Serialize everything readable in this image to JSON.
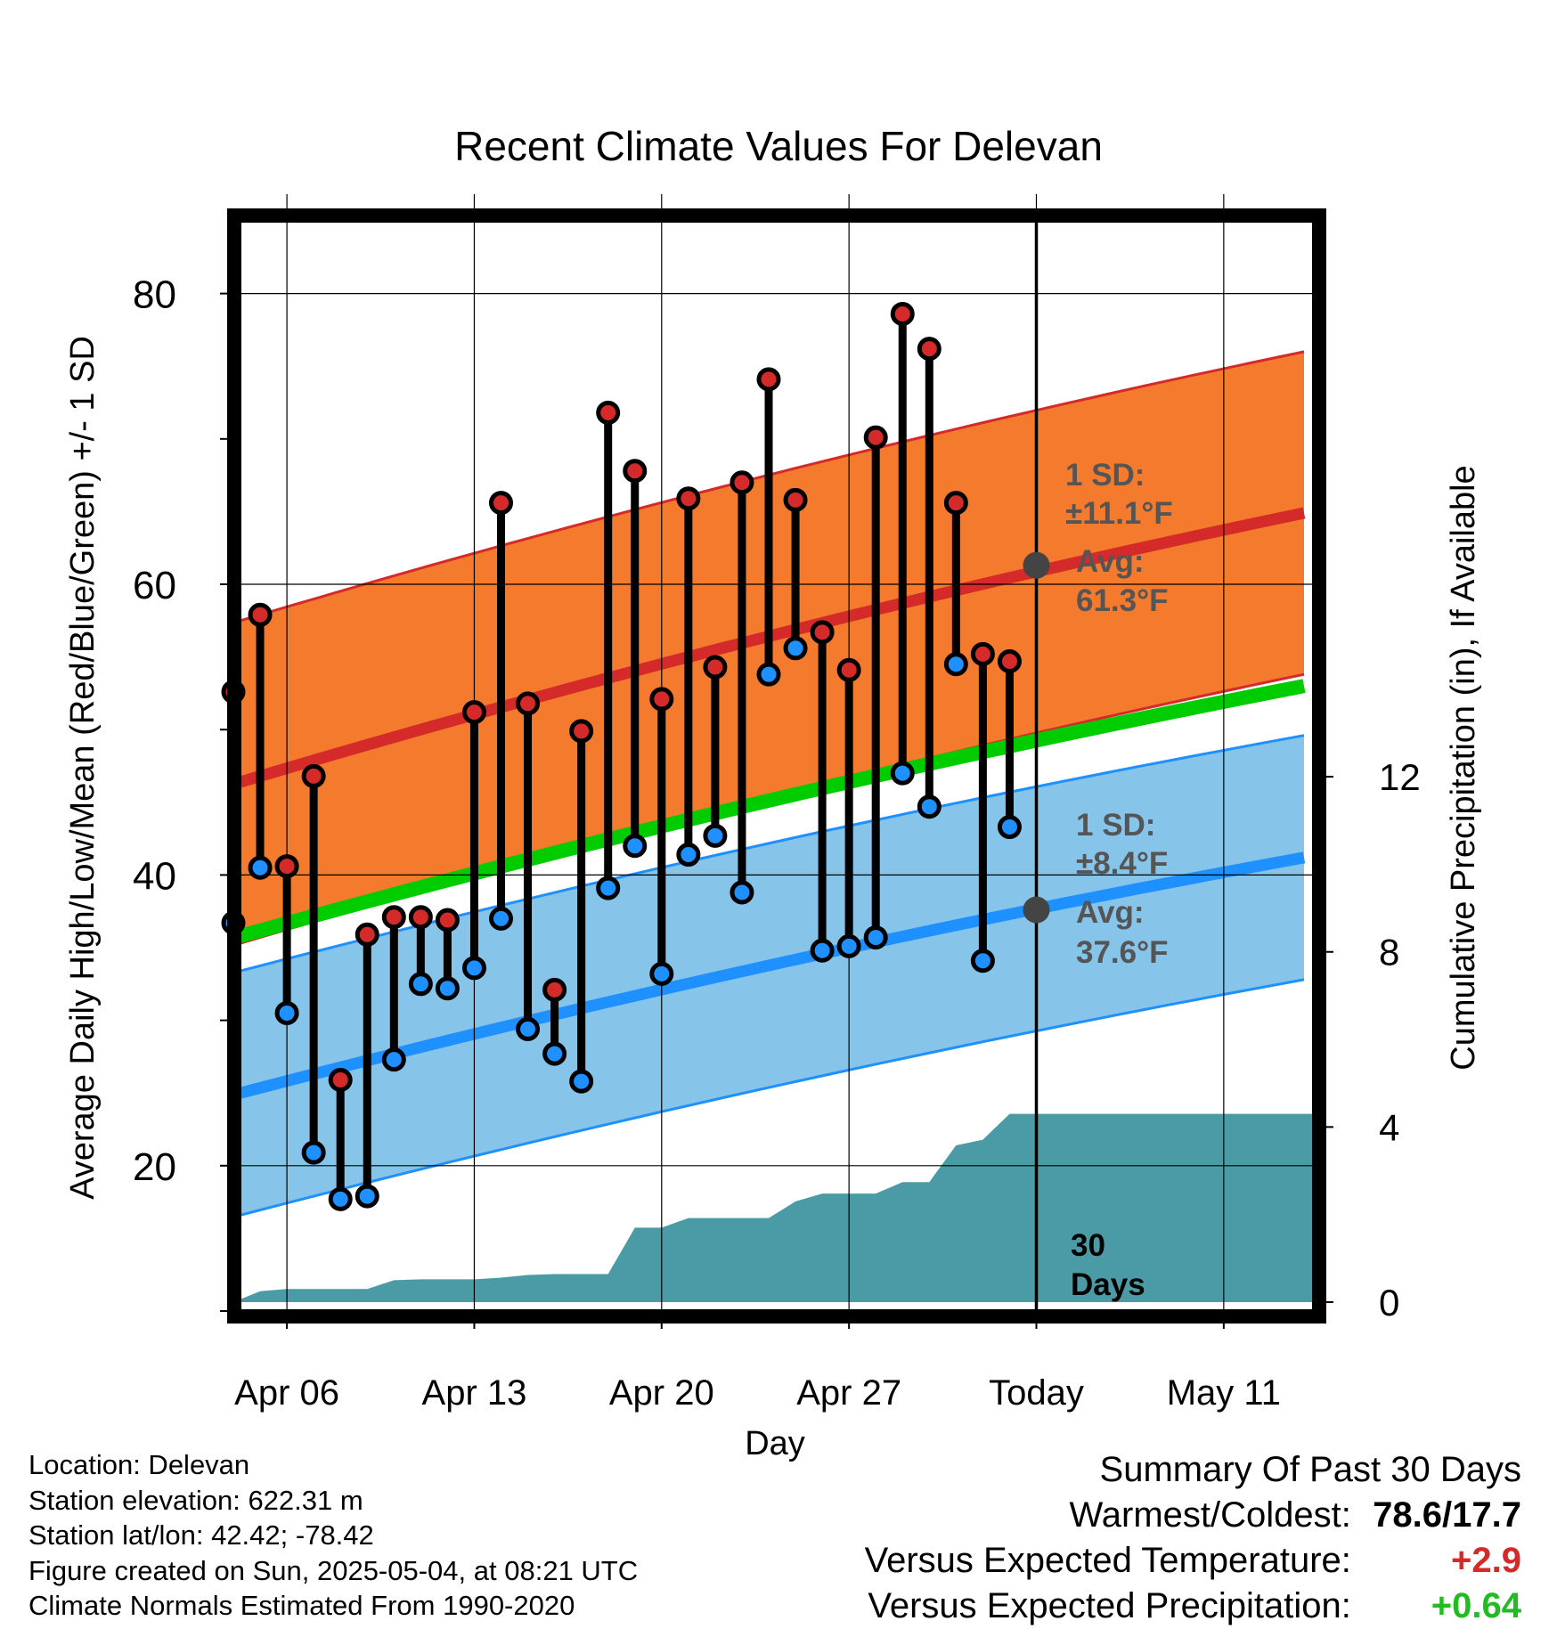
{
  "chart_data": {
    "type": "line",
    "title": "Recent Climate Values For Delevan",
    "xlabel": "Day",
    "ylabel": "Average Daily High/Low/Mean (Red/Blue/Green) +/- 1 SD",
    "y2label": "Cumulative Precipitation (in), If Available",
    "x_tick_labels": [
      "Apr 06",
      "Apr 13",
      "Apr 20",
      "Apr 27",
      "Today",
      "May 11"
    ],
    "y_ticks": [
      20,
      40,
      60,
      80
    ],
    "y2_ticks": [
      0,
      4,
      8,
      12
    ],
    "ylim": [
      10,
      85
    ],
    "y2lim": [
      0,
      24.9
    ],
    "grid": true,
    "colors": {
      "high_band": "#f47a2e",
      "high_mean": "#d42a2a",
      "low_band": "#87c4ea",
      "low_mean": "#1e90ff",
      "mean": "#00cc00",
      "precip": "#4a9ba5",
      "high_dot": "#d42a2a",
      "low_dot": "#1e90ff",
      "avg_dot": "#444444",
      "annotation": "#555555"
    },
    "dates": [
      "Apr 04",
      "Apr 05",
      "Apr 06",
      "Apr 07",
      "Apr 08",
      "Apr 09",
      "Apr 10",
      "Apr 11",
      "Apr 12",
      "Apr 13",
      "Apr 14",
      "Apr 15",
      "Apr 16",
      "Apr 17",
      "Apr 18",
      "Apr 19",
      "Apr 20",
      "Apr 21",
      "Apr 22",
      "Apr 23",
      "Apr 24",
      "Apr 25",
      "Apr 26",
      "Apr 27",
      "Apr 28",
      "Apr 29",
      "Apr 30",
      "May 01",
      "May 02",
      "May 03"
    ],
    "observed_high": [
      52.6,
      57.9,
      40.6,
      46.8,
      25.9,
      35.9,
      37.1,
      37.1,
      36.9,
      51.2,
      65.6,
      51.8,
      32.1,
      49.9,
      71.8,
      67.8,
      52.1,
      65.9,
      54.3,
      67.0,
      74.1,
      65.8,
      56.7,
      54.1,
      70.1,
      78.6,
      76.2,
      65.6,
      55.2,
      54.7
    ],
    "observed_low": [
      36.7,
      40.5,
      30.5,
      20.9,
      17.7,
      17.9,
      27.3,
      32.5,
      32.2,
      33.6,
      37.0,
      29.4,
      27.7,
      25.8,
      39.1,
      42.0,
      33.2,
      41.4,
      42.7,
      38.8,
      53.8,
      55.6,
      34.8,
      35.1,
      35.7,
      47.0,
      44.7,
      54.5,
      34.1,
      43.3
    ],
    "normal_band_x": [
      "Apr 04",
      "May 14"
    ],
    "normal_high_start": 46.4,
    "normal_high_end": 64.9,
    "normal_high_sd": 11.1,
    "normal_low_start": 25.0,
    "normal_low_end": 41.2,
    "normal_low_sd": 8.4,
    "normal_mean_start": 35.8,
    "normal_mean_end": 53.0,
    "precip_dates": [
      "Apr 04",
      "Apr 05",
      "Apr 06",
      "Apr 07",
      "Apr 08",
      "Apr 09",
      "Apr 10",
      "Apr 11",
      "Apr 12",
      "Apr 13",
      "Apr 14",
      "Apr 15",
      "Apr 16",
      "Apr 17",
      "Apr 18",
      "Apr 19",
      "Apr 20",
      "Apr 21",
      "Apr 22",
      "Apr 23",
      "Apr 24",
      "Apr 25",
      "Apr 26",
      "Apr 27",
      "Apr 28",
      "Apr 29",
      "Apr 30",
      "May 01",
      "May 02",
      "May 03",
      "May 04",
      "May 14"
    ],
    "precip_cumulative": [
      0.0,
      0.25,
      0.3,
      0.3,
      0.3,
      0.3,
      0.5,
      0.52,
      0.52,
      0.52,
      0.56,
      0.62,
      0.64,
      0.64,
      0.64,
      1.7,
      1.7,
      1.92,
      1.92,
      1.92,
      1.92,
      2.3,
      2.48,
      2.48,
      2.48,
      2.74,
      2.74,
      3.58,
      3.71,
      4.3,
      4.3,
      4.3
    ],
    "today": "May 04",
    "annotations": {
      "high_sd_line1": "1 SD:",
      "high_sd_line2": "±11.1°F",
      "high_avg_line1": "Avg:",
      "high_avg_line2": "61.3°F",
      "high_avg_value": 61.3,
      "low_sd_line1": "1 SD:",
      "low_sd_line2": "±8.4°F",
      "low_avg_line1": "Avg:",
      "low_avg_line2": "37.6°F",
      "low_avg_value": 37.6,
      "days_line1": "30",
      "days_line2": "Days"
    }
  },
  "footer": {
    "location": "Location: Delevan",
    "elevation": "Station elevation: 622.31 m",
    "latlon": "Station lat/lon: 42.42; -78.42",
    "created": "Figure created on Sun, 2025-05-04, at 08:21 UTC",
    "normals": "Climate Normals Estimated From 1990-2020"
  },
  "summary": {
    "title": "Summary Of Past 30 Days",
    "warmest_label": "Warmest/Coldest:",
    "warmest_value": "78.6/17.7",
    "temp_label": "Versus Expected Temperature:",
    "temp_value": "+2.9",
    "temp_color": "#d42a2a",
    "precip_label": "Versus Expected Precipitation:",
    "precip_value": "+0.64",
    "precip_color": "#22bb22"
  }
}
